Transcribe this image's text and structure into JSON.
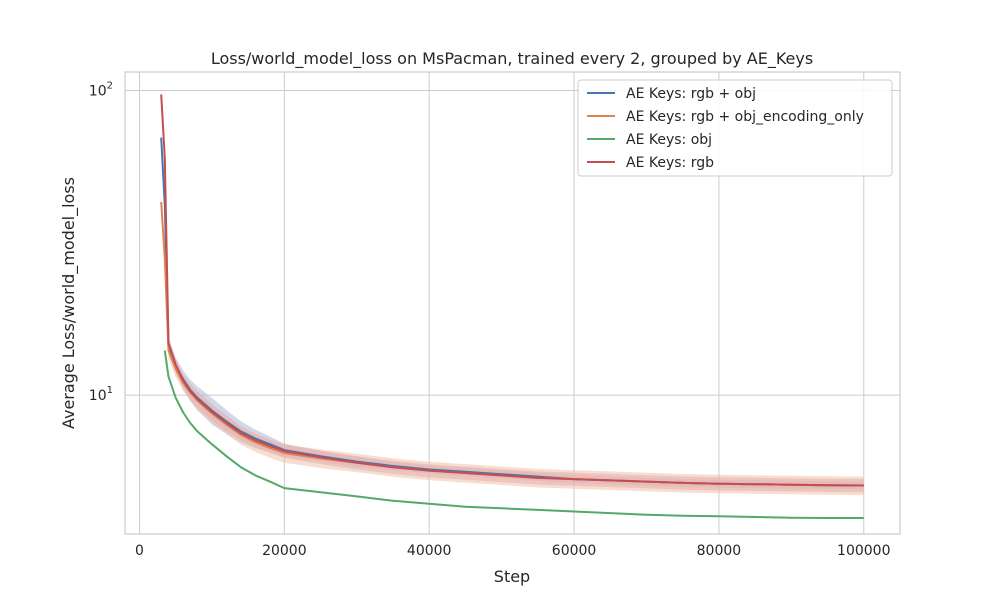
{
  "chart_data": {
    "type": "line",
    "title": "Loss/world_model_loss on MsPacman, trained every 2, grouped by AE_Keys",
    "xlabel": "Step",
    "ylabel": "Average Loss/world_model_loss",
    "y_scale": "log",
    "xlim": [
      -2000,
      105000
    ],
    "ylim": [
      3.5,
      115
    ],
    "x_ticks": [
      0,
      20000,
      40000,
      60000,
      80000,
      100000
    ],
    "x_tick_labels": [
      "0",
      "20000",
      "40000",
      "60000",
      "80000",
      "100000"
    ],
    "y_ticks": [
      10,
      100
    ],
    "y_tick_labels": [
      "10^1",
      "10^2"
    ],
    "grid": true,
    "legend_position": "top-right",
    "series": [
      {
        "name": "AE Keys: rgb + obj",
        "color": "#4c72b0",
        "band_color": "#a9b9dc",
        "x": [
          3000,
          3500,
          4000,
          5000,
          6000,
          7000,
          8000,
          10000,
          12000,
          14000,
          16000,
          18000,
          20000,
          25000,
          30000,
          35000,
          40000,
          45000,
          50000,
          55000,
          60000,
          65000,
          70000,
          75000,
          80000,
          85000,
          90000,
          95000,
          100000
        ],
        "y": [
          70,
          42,
          14.5,
          12.5,
          11.3,
          10.4,
          9.8,
          8.9,
          8.2,
          7.6,
          7.2,
          6.9,
          6.6,
          6.3,
          6.05,
          5.85,
          5.7,
          5.6,
          5.5,
          5.4,
          5.3,
          5.25,
          5.2,
          5.15,
          5.12,
          5.1,
          5.08,
          5.06,
          5.05
        ],
        "band": [
          0.05,
          0.05,
          0.06,
          0.06,
          0.07,
          0.08,
          0.09,
          0.1,
          0.09,
          0.08,
          0.07,
          0.06,
          0.05,
          0.04,
          0.04,
          0.03,
          0.03,
          0.03,
          0.03,
          0.03,
          0.03,
          0.03,
          0.03,
          0.03,
          0.03,
          0.03,
          0.03,
          0.03,
          0.03
        ]
      },
      {
        "name": "AE Keys: rgb + obj_encoding_only",
        "color": "#dd8452",
        "band_color": "#f0c3a6",
        "x": [
          3000,
          3500,
          4000,
          5000,
          6000,
          7000,
          8000,
          10000,
          12000,
          14000,
          16000,
          18000,
          20000,
          25000,
          30000,
          35000,
          40000,
          45000,
          50000,
          55000,
          60000,
          65000,
          70000,
          75000,
          80000,
          85000,
          90000,
          95000,
          100000
        ],
        "y": [
          43,
          28,
          14,
          12.2,
          11.0,
          10.2,
          9.6,
          8.7,
          8.0,
          7.4,
          7.0,
          6.7,
          6.45,
          6.2,
          6.0,
          5.8,
          5.65,
          5.55,
          5.45,
          5.35,
          5.3,
          5.25,
          5.2,
          5.15,
          5.12,
          5.1,
          5.08,
          5.06,
          5.05
        ],
        "band": [
          0.05,
          0.05,
          0.06,
          0.06,
          0.06,
          0.06,
          0.07,
          0.07,
          0.07,
          0.07,
          0.07,
          0.07,
          0.07,
          0.07,
          0.07,
          0.07,
          0.07,
          0.07,
          0.07,
          0.07,
          0.07,
          0.07,
          0.07,
          0.07,
          0.07,
          0.07,
          0.07,
          0.07,
          0.07
        ]
      },
      {
        "name": "AE Keys: obj",
        "color": "#55a868",
        "band_color": "#55a868",
        "x": [
          3500,
          4000,
          5000,
          6000,
          7000,
          8000,
          10000,
          12000,
          14000,
          16000,
          18000,
          20000,
          25000,
          30000,
          35000,
          40000,
          45000,
          50000,
          55000,
          60000,
          65000,
          70000,
          75000,
          80000,
          85000,
          90000,
          95000,
          100000
        ],
        "y": [
          14,
          11.5,
          9.8,
          8.8,
          8.1,
          7.6,
          6.9,
          6.3,
          5.8,
          5.45,
          5.2,
          4.95,
          4.8,
          4.65,
          4.5,
          4.4,
          4.3,
          4.25,
          4.2,
          4.15,
          4.1,
          4.05,
          4.02,
          4.0,
          3.98,
          3.96,
          3.95,
          3.95
        ],
        "band": []
      },
      {
        "name": "AE Keys: rgb",
        "color": "#c44e52",
        "band_color": "#e7aeb0",
        "x": [
          3000,
          3500,
          4000,
          5000,
          6000,
          7000,
          8000,
          10000,
          12000,
          14000,
          16000,
          18000,
          20000,
          25000,
          30000,
          35000,
          40000,
          45000,
          50000,
          55000,
          60000,
          65000,
          70000,
          75000,
          80000,
          85000,
          90000,
          95000,
          100000
        ],
        "y": [
          97,
          60,
          14.8,
          12.6,
          11.2,
          10.3,
          9.7,
          8.8,
          8.1,
          7.5,
          7.1,
          6.8,
          6.55,
          6.25,
          6.0,
          5.8,
          5.65,
          5.55,
          5.45,
          5.35,
          5.3,
          5.25,
          5.2,
          5.15,
          5.12,
          5.1,
          5.08,
          5.06,
          5.05
        ],
        "band": [
          0.04,
          0.04,
          0.05,
          0.05,
          0.05,
          0.06,
          0.06,
          0.06,
          0.06,
          0.05,
          0.05,
          0.05,
          0.05,
          0.05,
          0.05,
          0.05,
          0.05,
          0.05,
          0.05,
          0.05,
          0.05,
          0.05,
          0.05,
          0.05,
          0.05,
          0.05,
          0.05,
          0.05,
          0.05
        ]
      }
    ]
  }
}
